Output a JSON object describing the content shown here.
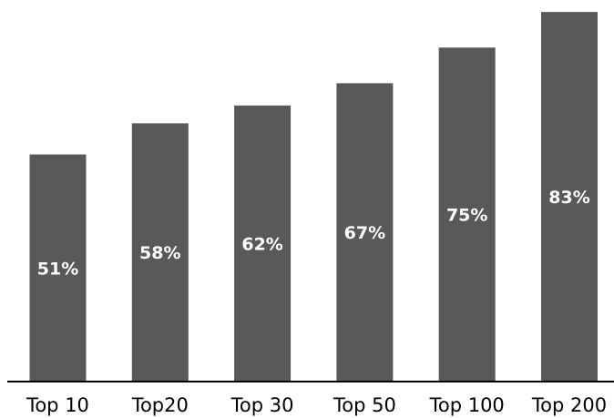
{
  "chart_data": {
    "type": "bar",
    "categories": [
      "Top 10",
      "Top20",
      "Top 30",
      "Top 50",
      "Top 100",
      "Top 200"
    ],
    "values": [
      51,
      58,
      62,
      67,
      75,
      83
    ],
    "value_labels": [
      "51%",
      "58%",
      "62%",
      "67%",
      "75%",
      "83%"
    ],
    "title": "",
    "xlabel": "",
    "ylabel": "",
    "ylim": [
      0,
      100
    ],
    "grid": false,
    "legend": "none",
    "bar_color": "#595959",
    "label_color": "#ffffff"
  }
}
